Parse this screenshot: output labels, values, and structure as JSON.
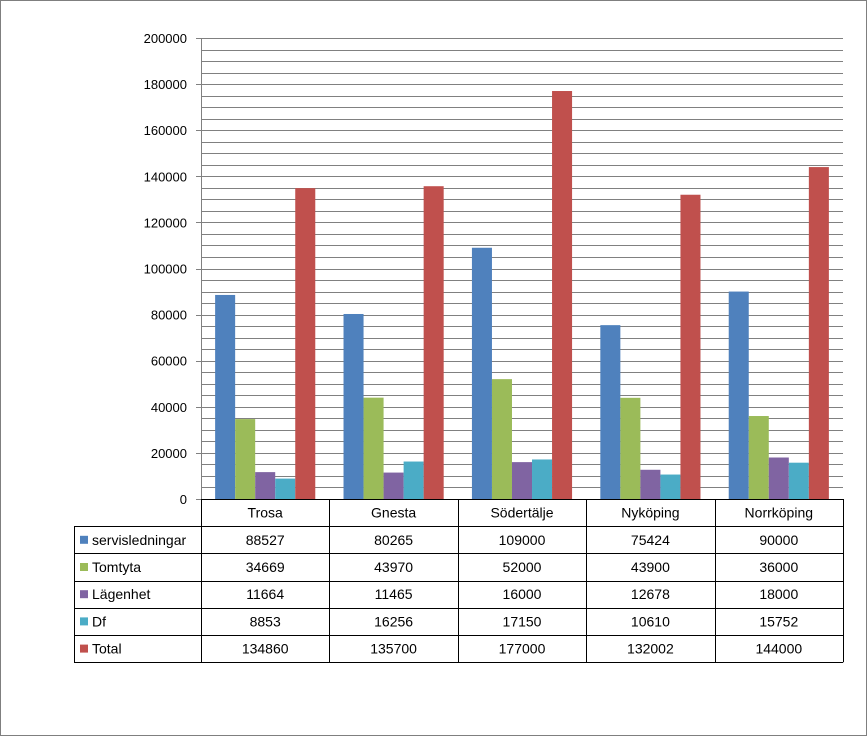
{
  "chart_data": {
    "type": "bar",
    "categories": [
      "Trosa",
      "Gnesta",
      "Södertälje",
      "Nyköping",
      "Norrköping"
    ],
    "series": [
      {
        "name": "servisledningar",
        "color": "#4F81BD",
        "values": [
          88527,
          80265,
          109000,
          75424,
          90000
        ]
      },
      {
        "name": "Tomtyta",
        "color": "#9BBB59",
        "values": [
          34669,
          43970,
          52000,
          43900,
          36000
        ]
      },
      {
        "name": "Lägenhet",
        "color": "#8064A2",
        "values": [
          11664,
          11465,
          16000,
          12678,
          18000
        ]
      },
      {
        "name": "Df",
        "color": "#4BACC6",
        "values": [
          8853,
          16256,
          17150,
          10610,
          15752
        ]
      },
      {
        "name": "Total",
        "color": "#C0504D",
        "values": [
          134860,
          135700,
          177000,
          132002,
          144000
        ]
      }
    ],
    "ylim": [
      0,
      200000
    ],
    "ytick_step": 20000,
    "ytick_labels": [
      "0",
      "20000",
      "40000",
      "60000",
      "80000",
      "100000",
      "120000",
      "140000",
      "160000",
      "180000",
      "200000"
    ],
    "data_table": true,
    "grid": true,
    "grid_color": "#808080",
    "title": "",
    "xlabel": "",
    "ylabel": ""
  }
}
